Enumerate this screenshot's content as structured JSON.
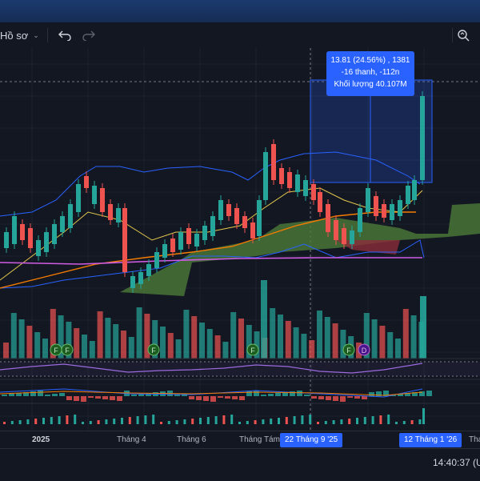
{
  "toolbar": {
    "profile_label": "Hồ sơ"
  },
  "tooltip": {
    "line1": "13.81 (24.56%) , 1381",
    "line2": "-16 thanh, -112n",
    "line3": "Khối lượng 40.107M"
  },
  "xaxis": {
    "labels": [
      "2025",
      "Tháng 4",
      "Tháng 6",
      "Tháng Tám"
    ],
    "highlight_start": "22 Tháng 9 '25",
    "highlight_end": "12 Tháng 1 '26",
    "partial_next": "Tha"
  },
  "markers": {
    "f": "F",
    "d": "D"
  },
  "status": {
    "clock": "14:40:37 (U"
  },
  "colors": {
    "up": "#26a69a",
    "down": "#ef5350",
    "bb": "#2962ff",
    "cloud_green": "#4c7a3a",
    "accent": "#2962ff"
  }
}
